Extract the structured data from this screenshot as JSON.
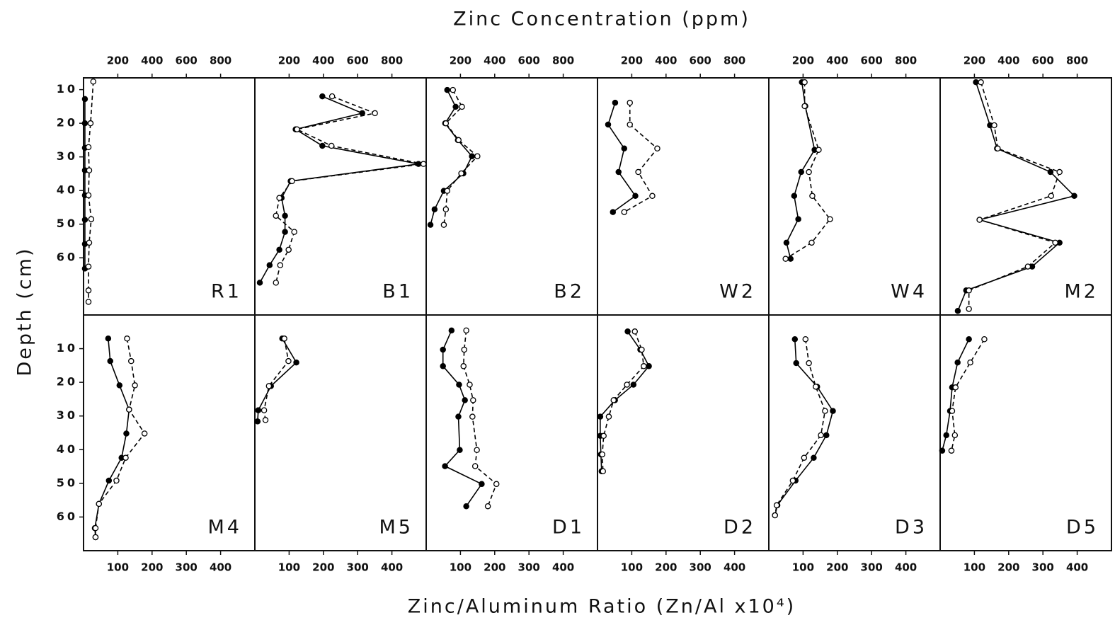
{
  "chart_data": {
    "type": "line",
    "title": "Zinc Concentration (ppm)",
    "xlabel": "Zinc/Aluminum Ratio  (Zn/Al x10⁴)",
    "ylabel": "Depth (cm)",
    "rows": [
      {
        "xlim": [
          0,
          1000
        ],
        "xticks": [
          200,
          400,
          600,
          800
        ],
        "ylim": [
          6.5,
          77
        ],
        "yticks": [
          10,
          20,
          30,
          40,
          50,
          60
        ],
        "panels": [
          {
            "name": "R1",
            "series": [
              {
                "color": "#000",
                "marker": "filled",
                "dashed": false,
                "x": [
                  8,
                  8,
                  8,
                  8,
                  8,
                  8,
                  8,
                  8
                ],
                "values": [
                  12.8,
                  20,
                  27.3,
                  34,
                  41.4,
                  48.7,
                  55.9,
                  63.2
                ]
              },
              {
                "color": "#000",
                "marker": "open",
                "dashed": true,
                "x": [
                  57,
                  41,
                  29,
                  33,
                  29,
                  45,
                  33,
                  29,
                  29,
                  29
                ],
                "values": [
                  7.6,
                  20,
                  27.1,
                  34,
                  41.4,
                  48.5,
                  55.5,
                  62.6,
                  69.7,
                  73.1
                ]
              }
            ]
          },
          {
            "name": "B1",
            "series": [
              {
                "color": "#000",
                "marker": "filled",
                "dashed": false,
                "x": [
                  394,
                  627,
                  238,
                  394,
                  955,
                  209,
                  156,
                  176,
                  176,
                  143,
                  86,
                  29
                ],
                "values": [
                  12,
                  17,
                  21.8,
                  26.7,
                  32.1,
                  37.2,
                  42.2,
                  47.5,
                  52.3,
                  57.6,
                  62.2,
                  67.4
                ]
              },
              {
                "color": "#000",
                "marker": "open",
                "dashed": true,
                "x": [
                  451,
                  701,
                  246,
                  447,
                  984,
                  217,
                  143,
                  123,
                  230,
                  197,
                  148,
                  123
                ],
                "values": [
                  12,
                  17,
                  21.8,
                  26.7,
                  32.1,
                  37.2,
                  42.2,
                  47.5,
                  52.3,
                  57.6,
                  62.2,
                  67.4
                ]
              }
            ]
          },
          {
            "name": "B2",
            "series": [
              {
                "color": "#000",
                "marker": "filled",
                "dashed": false,
                "x": [
                  123,
                  172,
                  111,
                  185,
                  267,
                  217,
                  103,
                  49,
                  25
                ],
                "values": [
                  10.1,
                  15.1,
                  20,
                  25,
                  29.8,
                  34.9,
                  40.1,
                  45.6,
                  50.2
                ]
              },
              {
                "color": "#000",
                "marker": "open",
                "dashed": true,
                "x": [
                  156,
                  209,
                  115,
                  189,
                  299,
                  205,
                  123,
                  115,
                  103
                ],
                "values": [
                  10.1,
                  15.1,
                  20,
                  25,
                  29.8,
                  34.9,
                  40.1,
                  45.6,
                  50.2
                ]
              }
            ]
          },
          {
            "name": "W2",
            "series": [
              {
                "color": "#000",
                "marker": "filled",
                "dashed": false,
                "x": [
                  103,
                  62,
                  156,
                  123,
                  221,
                  90
                ],
                "values": [
                  13.9,
                  20.4,
                  27.5,
                  34.5,
                  41.6,
                  46.4
                ]
              },
              {
                "color": "#000",
                "marker": "open",
                "dashed": true,
                "x": [
                  189,
                  189,
                  349,
                  238,
                  320,
                  156
                ],
                "values": [
                  13.9,
                  20.4,
                  27.5,
                  34.5,
                  41.6,
                  46.4
                ]
              }
            ]
          },
          {
            "name": "W4",
            "series": [
              {
                "color": "#000",
                "marker": "filled",
                "dashed": false,
                "x": [
                  193,
                  213,
                  267,
                  189,
                  148,
                  172,
                  103,
                  127
                ],
                "values": [
                  7.8,
                  14.9,
                  27.9,
                  34.5,
                  41.6,
                  48.5,
                  55.5,
                  60.3
                ]
              },
              {
                "color": "#000",
                "marker": "open",
                "dashed": true,
                "x": [
                  209,
                  209,
                  291,
                  234,
                  254,
                  357,
                  250,
                  98
                ],
                "values": [
                  7.8,
                  14.9,
                  27.9,
                  34.5,
                  41.6,
                  48.5,
                  55.5,
                  60.3
                ]
              }
            ]
          },
          {
            "name": "M2",
            "series": [
              {
                "color": "#000",
                "marker": "filled",
                "dashed": false,
                "x": [
                  209,
                  291,
                  332,
                  644,
                  783,
                  230,
                  697,
                  537,
                  152,
                  103
                ],
                "values": [
                  7.8,
                  20.6,
                  27.5,
                  34.5,
                  41.6,
                  48.7,
                  55.5,
                  62.6,
                  69.7,
                  75.8
                ]
              },
              {
                "color": "#000",
                "marker": "open",
                "dashed": true,
                "x": [
                  238,
                  316,
                  336,
                  697,
                  648,
                  230,
                  672,
                  512,
                  168,
                  168
                ],
                "values": [
                  7.8,
                  20.6,
                  27.5,
                  34.5,
                  41.6,
                  48.7,
                  55.5,
                  62.6,
                  69.7,
                  75.2
                ]
              }
            ]
          }
        ]
      },
      {
        "xlim": [
          0,
          500
        ],
        "xticks": [
          100,
          200,
          300,
          400
        ],
        "ylim": [
          0,
          70
        ],
        "yticks": [
          10,
          20,
          30,
          40,
          50,
          60
        ],
        "panels": [
          {
            "name": "M4",
            "series": [
              {
                "color": "#000",
                "marker": "filled",
                "dashed": false,
                "x": [
                  72,
                  78,
                  105,
                  133,
                  125,
                  111,
                  74,
                  45,
                  33,
                  35
                ],
                "values": [
                  7,
                  13.7,
                  20.9,
                  28.1,
                  35.2,
                  42.4,
                  49.2,
                  56.1,
                  63.3,
                  66
                ]
              },
              {
                "color": "#000",
                "marker": "open",
                "dashed": true,
                "x": [
                  127,
                  139,
                  150,
                  133,
                  178,
                  123,
                  96,
                  45,
                  35,
                  35
                ],
                "values": [
                  7,
                  13.7,
                  20.9,
                  28.1,
                  35.2,
                  42.4,
                  49.2,
                  56.1,
                  63.3,
                  66
                ]
              }
            ]
          },
          {
            "name": "M5",
            "series": [
              {
                "color": "#000",
                "marker": "filled",
                "dashed": false,
                "x": [
                  80,
                  121,
                  47,
                  10,
                  8
                ],
                "values": [
                  7,
                  14.1,
                  21.1,
                  28.3,
                  31.6
                ]
              },
              {
                "color": "#000",
                "marker": "open",
                "dashed": true,
                "x": [
                  86,
                  98,
                  41,
                  27,
                  31
                ],
                "values": [
                  7,
                  13.7,
                  21.1,
                  28.3,
                  31.2
                ]
              }
            ]
          },
          {
            "name": "D1",
            "series": [
              {
                "color": "#000",
                "marker": "filled",
                "dashed": false,
                "x": [
                  74,
                  49,
                  49,
                  96,
                  113,
                  94,
                  98,
                  55,
                  162,
                  117
                ],
                "values": [
                  4.6,
                  10.3,
                  15.2,
                  20.7,
                  25.3,
                  30.2,
                  40.1,
                  44.9,
                  50.2,
                  56.8
                ]
              },
              {
                "color": "#000",
                "marker": "open",
                "dashed": true,
                "x": [
                  117,
                  111,
                  109,
                  127,
                  137,
                  135,
                  148,
                  143,
                  205,
                  180
                ],
                "values": [
                  4.6,
                  10.3,
                  15.2,
                  20.7,
                  25.3,
                  30.2,
                  40.1,
                  44.9,
                  50.2,
                  56.8
                ]
              }
            ]
          },
          {
            "name": "D2",
            "series": [
              {
                "color": "#000",
                "marker": "filled",
                "dashed": false,
                "x": [
                  88,
                  125,
                  150,
                  105,
                  51,
                  8,
                  8,
                  10,
                  12
                ],
                "values": [
                  4.9,
                  10.3,
                  15.2,
                  20.7,
                  25.3,
                  30.2,
                  35.9,
                  41.4,
                  46.4
                ]
              },
              {
                "color": "#000",
                "marker": "open",
                "dashed": true,
                "x": [
                  109,
                  129,
                  135,
                  86,
                  47,
                  33,
                  18,
                  14,
                  16
                ],
                "values": [
                  4.9,
                  10.3,
                  15.2,
                  20.7,
                  25.3,
                  30.2,
                  35.9,
                  41.4,
                  46.4
                ]
              }
            ]
          },
          {
            "name": "D3",
            "series": [
              {
                "color": "#000",
                "marker": "filled",
                "dashed": false,
                "x": [
                  76,
                  80,
                  141,
                  187,
                  168,
                  131,
                  78,
                  25,
                  18
                ],
                "values": [
                  7.2,
                  14.3,
                  21.3,
                  28.5,
                  35.7,
                  42.4,
                  49.2,
                  56.5,
                  59.5
                ]
              },
              {
                "color": "#000",
                "marker": "open",
                "dashed": true,
                "x": [
                  107,
                  117,
                  137,
                  164,
                  152,
                  103,
                  70,
                  23,
                  18
                ],
                "values": [
                  7.2,
                  14.3,
                  21.3,
                  28.5,
                  35.7,
                  42.4,
                  49.2,
                  56.5,
                  59.5
                ]
              }
            ]
          },
          {
            "name": "D5",
            "series": [
              {
                "color": "#000",
                "marker": "filled",
                "dashed": false,
                "x": [
                  84,
                  51,
                  35,
                  29,
                  18,
                  6
                ],
                "values": [
                  7.2,
                  14.1,
                  21.5,
                  28.5,
                  35.7,
                  40.3
                ]
              },
              {
                "color": "#000",
                "marker": "open",
                "dashed": true,
                "x": [
                  129,
                  88,
                  45,
                  35,
                  43,
                  33
                ],
                "values": [
                  7.2,
                  14.1,
                  21.5,
                  28.5,
                  35.7,
                  40.3
                ]
              }
            ]
          }
        ]
      }
    ]
  }
}
